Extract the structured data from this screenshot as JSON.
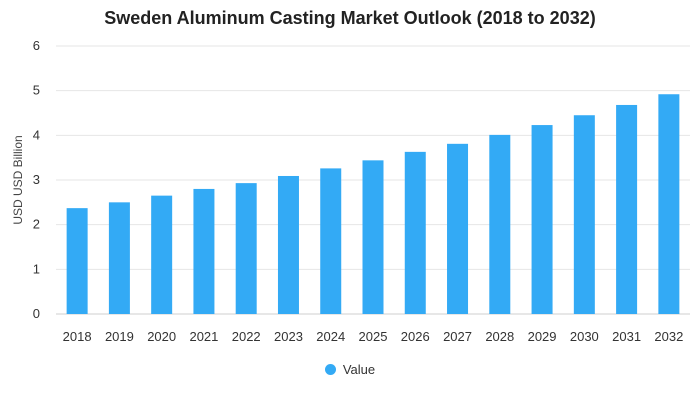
{
  "chart_data": {
    "type": "bar",
    "title": "Sweden Aluminum Casting Market Outlook (2018 to 2032)",
    "xlabel": "",
    "ylabel": "USD USD Billion",
    "categories": [
      "2018",
      "2019",
      "2020",
      "2021",
      "2022",
      "2023",
      "2024",
      "2025",
      "2026",
      "2027",
      "2028",
      "2029",
      "2030",
      "2031",
      "2032"
    ],
    "series": [
      {
        "name": "Value",
        "color": "#33aaf5",
        "values": [
          2.37,
          2.5,
          2.65,
          2.8,
          2.93,
          3.09,
          3.26,
          3.44,
          3.63,
          3.81,
          4.01,
          4.23,
          4.45,
          4.68,
          4.92
        ]
      }
    ],
    "yticks": [
      "0",
      "1",
      "2",
      "3",
      "4",
      "5",
      "6"
    ],
    "ylim": [
      0,
      6
    ],
    "grid": true,
    "legend_position": "bottom-center"
  }
}
